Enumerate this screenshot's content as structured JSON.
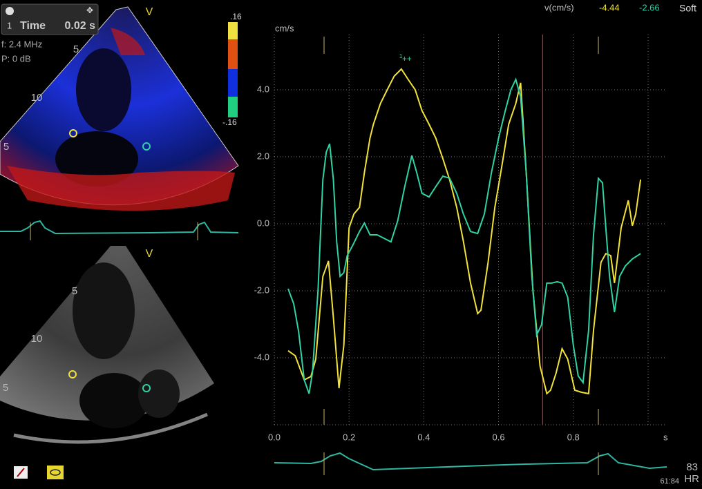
{
  "ui": {
    "clip_number": "1",
    "clip_label": "Time",
    "clip_value": "0.02 s",
    "frequency": "f: 2.4 MHz",
    "power": "P: 0 dB",
    "view_marker_top": "V",
    "view_marker_bottom": "V",
    "depth_top": [
      "5",
      "10",
      "5"
    ],
    "depth_bottom": [
      "5",
      "10",
      "5"
    ],
    "color_scale_max": ".16",
    "color_scale_min": "-.16",
    "heart_rate": "83",
    "heart_rate_label": "HR",
    "frame_info": "61:84"
  },
  "chart_data": {
    "type": "line",
    "readout_label": "v(cm/s)",
    "readout_mode": "Soft",
    "y_unit": "cm/s",
    "x_unit": "s",
    "xlim": [
      0,
      1.05
    ],
    "ylim": [
      -6,
      5.65
    ],
    "xticks": [
      {
        "value": 0,
        "label": "0.0"
      },
      0.2,
      0.4,
      0.6,
      0.8,
      {
        "value": 1,
        "label": null
      }
    ],
    "yticks": [
      {
        "value": 4,
        "label": "4.0"
      },
      {
        "value": 2,
        "label": "2.0"
      },
      {
        "value": 0,
        "label": "0.0"
      },
      {
        "value": -2,
        "label": "-2.0"
      },
      {
        "value": -4,
        "label": "-4.0"
      }
    ],
    "grid": true,
    "cursor_x": 0.718,
    "cursor_color": "#e0201c",
    "annotation": {
      "index": "1",
      "text": "++"
    },
    "series": [
      {
        "color": "#f2e33a",
        "readout": -4.44,
        "x": [
          0.037,
          0.056,
          0.08,
          0.098,
          0.111,
          0.13,
          0.145,
          0.158,
          0.173,
          0.186,
          0.2,
          0.213,
          0.228,
          0.241,
          0.256,
          0.265,
          0.284,
          0.302,
          0.321,
          0.34,
          0.358,
          0.377,
          0.395,
          0.414,
          0.432,
          0.451,
          0.469,
          0.488,
          0.506,
          0.525,
          0.544,
          0.553,
          0.572,
          0.59,
          0.609,
          0.627,
          0.646,
          0.659,
          0.674,
          0.692,
          0.711,
          0.729,
          0.739,
          0.754,
          0.77,
          0.785,
          0.804,
          0.822,
          0.841,
          0.854,
          0.874,
          0.887,
          0.9,
          0.91,
          0.919,
          0.928,
          0.947,
          0.958,
          0.967,
          0.98
        ],
        "values": [
          -3.79,
          -3.94,
          -4.66,
          -4.56,
          -4.04,
          -1.57,
          -1.11,
          -2.8,
          -4.91,
          -3.63,
          -0.12,
          0.29,
          0.49,
          1.53,
          2.56,
          2.97,
          3.59,
          4.0,
          4.41,
          4.62,
          4.31,
          4.0,
          3.38,
          2.97,
          2.56,
          1.94,
          1.32,
          0.49,
          -0.53,
          -1.77,
          -2.68,
          -2.58,
          -1.15,
          0.49,
          1.73,
          2.97,
          3.59,
          4.21,
          1.53,
          -1.98,
          -4.25,
          -5.07,
          -4.97,
          -4.45,
          -3.73,
          -4.04,
          -4.97,
          -5.03,
          -5.07,
          -3.18,
          -1.15,
          -0.89,
          -0.95,
          -1.77,
          -0.95,
          -0.12,
          0.7,
          -0.06,
          0.29,
          1.32
        ]
      },
      {
        "color": "#2fd3a4",
        "readout": -2.66,
        "x": [
          0.037,
          0.052,
          0.065,
          0.08,
          0.093,
          0.102,
          0.117,
          0.13,
          0.139,
          0.148,
          0.158,
          0.167,
          0.176,
          0.186,
          0.195,
          0.21,
          0.228,
          0.241,
          0.256,
          0.275,
          0.293,
          0.312,
          0.33,
          0.349,
          0.368,
          0.381,
          0.395,
          0.414,
          0.432,
          0.451,
          0.469,
          0.488,
          0.506,
          0.525,
          0.544,
          0.562,
          0.581,
          0.6,
          0.618,
          0.633,
          0.646,
          0.659,
          0.674,
          0.689,
          0.702,
          0.715,
          0.729,
          0.742,
          0.757,
          0.77,
          0.785,
          0.8,
          0.813,
          0.826,
          0.841,
          0.854,
          0.867,
          0.878,
          0.887,
          0.897,
          0.91,
          0.924,
          0.939,
          0.958,
          0.98
        ],
        "values": [
          -1.94,
          -2.39,
          -3.22,
          -4.66,
          -5.07,
          -4.45,
          -1.98,
          1.32,
          2.14,
          2.39,
          1.32,
          -0.54,
          -1.57,
          -1.46,
          -0.95,
          -0.64,
          -0.23,
          0.02,
          -0.33,
          -0.33,
          -0.43,
          -0.54,
          0.08,
          1.11,
          2.04,
          1.53,
          0.91,
          0.8,
          1.11,
          1.42,
          1.36,
          0.91,
          0.29,
          -0.23,
          -0.29,
          0.29,
          1.53,
          2.56,
          3.38,
          4.0,
          4.31,
          3.79,
          1.53,
          -1.57,
          -3.32,
          -3.01,
          -1.77,
          -1.77,
          -1.73,
          -1.77,
          -2.19,
          -3.63,
          -4.54,
          -4.74,
          -3.18,
          -0.33,
          1.36,
          1.22,
          -0.12,
          -1.57,
          -2.64,
          -1.57,
          -1.26,
          -1.05,
          -0.89
        ]
      }
    ]
  }
}
